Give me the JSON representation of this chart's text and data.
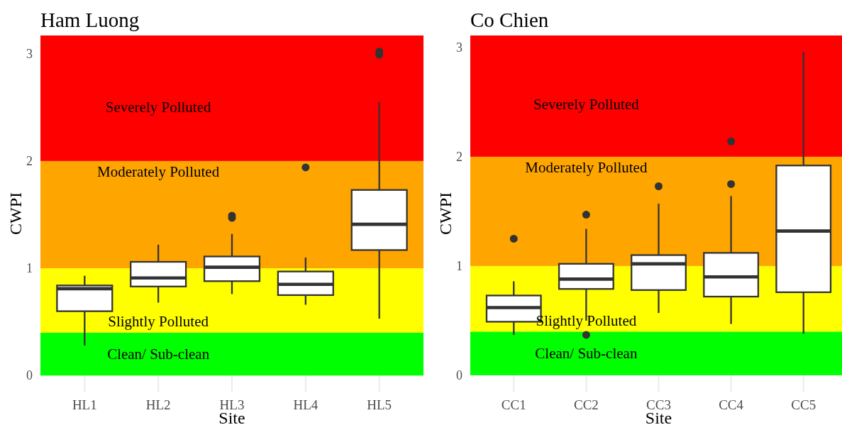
{
  "chart_data": [
    {
      "type": "box",
      "title": "Ham Luong",
      "xlabel": "Site",
      "ylabel": "CWPI",
      "categories": [
        "HL1",
        "HL2",
        "HL3",
        "HL4",
        "HL5"
      ],
      "color": "#333333",
      "boxes": [
        {
          "low": 0.28,
          "q1": 0.6,
          "median": 0.81,
          "q3": 0.84,
          "high": 0.93
        },
        {
          "low": 0.68,
          "q1": 0.83,
          "median": 0.91,
          "q3": 1.06,
          "high": 1.22
        },
        {
          "low": 0.76,
          "q1": 0.88,
          "median": 1.01,
          "q3": 1.11,
          "high": 1.32,
          "outliers": [
            1.47,
            1.49
          ]
        },
        {
          "low": 0.66,
          "q1": 0.75,
          "median": 0.85,
          "q3": 0.97,
          "high": 1.1,
          "outliers": [
            1.94
          ]
        },
        {
          "low": 0.53,
          "q1": 1.17,
          "median": 1.41,
          "q3": 1.73,
          "high": 2.55,
          "outliers": [
            2.99,
            3.02
          ]
        }
      ],
      "ylim": [
        -0.15,
        3.17
      ],
      "yticks": [
        0,
        1,
        2,
        3
      ],
      "grid": "x",
      "bands": [
        {
          "axis": "y",
          "from": 0,
          "to": 0.4,
          "color": "#00ff00",
          "label": "Clean/ Sub-clean"
        },
        {
          "axis": "y",
          "from": 0.4,
          "to": 1,
          "color": "#ffff00",
          "label": "Slightly Polluted"
        },
        {
          "axis": "y",
          "from": 1,
          "to": 2,
          "color": "#ffa500",
          "label": "Moderately Polluted"
        },
        {
          "axis": "y",
          "from": 2,
          "to": 3.17,
          "color": "#ff0000",
          "label": "Severely Polluted"
        }
      ]
    },
    {
      "type": "box",
      "title": "Co Chien",
      "xlabel": "Site",
      "ylabel": "CWPI",
      "categories": [
        "CC1",
        "CC2",
        "CC3",
        "CC4",
        "CC5"
      ],
      "color": "#333333",
      "boxes": [
        {
          "low": 0.37,
          "q1": 0.49,
          "median": 0.62,
          "q3": 0.73,
          "high": 0.86,
          "outliers": [
            1.25
          ]
        },
        {
          "low": 0.5,
          "q1": 0.79,
          "median": 0.88,
          "q3": 1.02,
          "high": 1.34,
          "outliers": [
            0.37,
            1.47
          ]
        },
        {
          "low": 0.57,
          "q1": 0.78,
          "median": 1.02,
          "q3": 1.1,
          "high": 1.57,
          "outliers": [
            1.73
          ]
        },
        {
          "low": 0.47,
          "q1": 0.72,
          "median": 0.9,
          "q3": 1.12,
          "high": 1.64,
          "outliers": [
            1.75,
            2.14
          ]
        },
        {
          "low": 0.38,
          "q1": 0.76,
          "median": 1.32,
          "q3": 1.92,
          "high": 2.96
        }
      ],
      "ylim": [
        -0.15,
        3.11
      ],
      "yticks": [
        0,
        1,
        2,
        3
      ],
      "grid": "x",
      "bands": [
        {
          "axis": "y",
          "from": 0,
          "to": 0.4,
          "color": "#00ff00",
          "label": "Clean/ Sub-clean"
        },
        {
          "axis": "y",
          "from": 0.4,
          "to": 1,
          "color": "#ffff00",
          "label": "Slightly Polluted"
        },
        {
          "axis": "y",
          "from": 1,
          "to": 2,
          "color": "#ffa500",
          "label": "Moderately Polluted"
        },
        {
          "axis": "y",
          "from": 2,
          "to": 3.11,
          "color": "#ff0000",
          "label": "Severely Polluted"
        }
      ]
    }
  ]
}
